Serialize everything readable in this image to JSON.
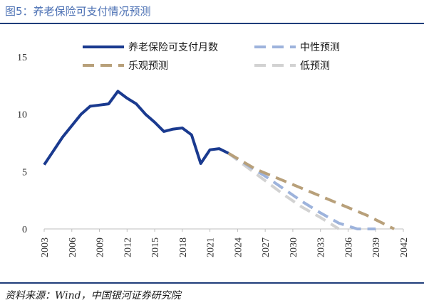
{
  "figure": {
    "title": "图5：养老保险可支付情况预测",
    "source": "资料来源：Wind，中国银河证券研究院"
  },
  "chart_data": {
    "type": "line",
    "title": "",
    "xlabel": "",
    "ylabel": "",
    "xlim": [
      2003,
      2042
    ],
    "ylim": [
      0,
      15
    ],
    "x_ticks": [
      2003,
      2006,
      2009,
      2012,
      2015,
      2018,
      2021,
      2024,
      2027,
      2030,
      2033,
      2036,
      2039,
      2042
    ],
    "y_ticks": [
      0,
      5,
      10,
      15
    ],
    "legend_position": "top",
    "series": [
      {
        "name": "养老保险可支付月数",
        "color": "#1a3a8f",
        "style": "solid",
        "points": [
          [
            2003,
            5.6
          ],
          [
            2004,
            6.8
          ],
          [
            2005,
            8.0
          ],
          [
            2006,
            9.0
          ],
          [
            2007,
            10.0
          ],
          [
            2008,
            10.7
          ],
          [
            2009,
            10.8
          ],
          [
            2010,
            10.9
          ],
          [
            2011,
            12.0
          ],
          [
            2012,
            11.4
          ],
          [
            2013,
            10.9
          ],
          [
            2014,
            10.0
          ],
          [
            2015,
            9.3
          ],
          [
            2016,
            8.5
          ],
          [
            2017,
            8.7
          ],
          [
            2018,
            8.8
          ],
          [
            2019,
            8.2
          ],
          [
            2020,
            5.7
          ],
          [
            2021,
            6.9
          ],
          [
            2022,
            7.0
          ],
          [
            2023,
            6.6
          ]
        ]
      },
      {
        "name": "中性预测",
        "color": "#9db3dc",
        "style": "dashed",
        "points": [
          [
            2023,
            6.6
          ],
          [
            2025,
            5.6
          ],
          [
            2027,
            4.6
          ],
          [
            2029,
            3.5
          ],
          [
            2031,
            2.4
          ],
          [
            2033,
            1.4
          ],
          [
            2035,
            0.5
          ],
          [
            2037,
            0.0
          ],
          [
            2039,
            0.0
          ]
        ]
      },
      {
        "name": "乐观预测",
        "color": "#b8a07a",
        "style": "dashed",
        "points": [
          [
            2023,
            6.6
          ],
          [
            2026,
            5.2
          ],
          [
            2029,
            4.2
          ],
          [
            2032,
            3.2
          ],
          [
            2035,
            2.2
          ],
          [
            2038,
            1.2
          ],
          [
            2041,
            0.0
          ]
        ]
      },
      {
        "name": "低预测",
        "color": "#d2d2d2",
        "style": "dashed",
        "points": [
          [
            2023,
            6.6
          ],
          [
            2025,
            5.4
          ],
          [
            2027,
            4.2
          ],
          [
            2029,
            3.0
          ],
          [
            2031,
            1.9
          ],
          [
            2033,
            1.0
          ],
          [
            2035,
            0.0
          ]
        ]
      }
    ]
  }
}
